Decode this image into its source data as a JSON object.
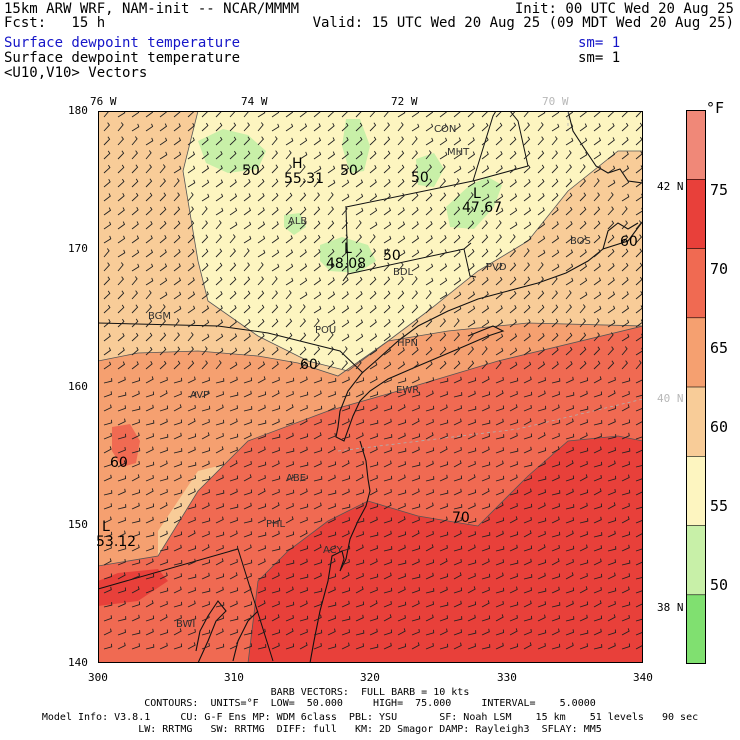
{
  "header": {
    "model": "15km ARW WRF, NAM-init -- NCAR/MMMM",
    "init": "Init: 00 UTC Wed 20 Aug 25",
    "fcst": "Fcst:   15 h",
    "valid": "Valid: 15 UTC Wed 20 Aug 25 (09 MDT Wed 20 Aug 25)",
    "field1": "Surface dewpoint temperature",
    "sm1": "sm= 1",
    "field2": "Surface dewpoint temperature",
    "sm2": "sm= 1",
    "field3": "<U10,V10> Vectors"
  },
  "axes": {
    "top_lon": [
      "76 W",
      "74 W",
      "72 W",
      "70 W"
    ],
    "right_lat": [
      "42 N",
      "40 N",
      "38 N"
    ],
    "left_y": [
      "180",
      "170",
      "160",
      "150",
      "140"
    ],
    "bottom_x": [
      "300",
      "310",
      "320",
      "330",
      "340"
    ]
  },
  "colorbar": {
    "unit": "°F",
    "labels": [
      "75",
      "70",
      "65",
      "60",
      "55",
      "50"
    ],
    "colors": [
      "#f08878",
      "#e8403a",
      "#f06a52",
      "#f5a070",
      "#f8cc98",
      "#fdf5c0",
      "#c8f0a8",
      "#80e070"
    ]
  },
  "contours": {
    "labels": [
      "50",
      "50",
      "50",
      "50",
      "60",
      "60",
      "60",
      "70"
    ],
    "extrema": [
      "H",
      "55.31",
      "L",
      "47.67",
      "L",
      "48.08",
      "L",
      "53.12"
    ]
  },
  "cities": [
    "CON",
    "MHT",
    "ALB",
    "BDL",
    "PVD",
    "BOS",
    "BGM",
    "POU",
    "HPN",
    "AVP",
    "ABE",
    "EWR",
    "PHL",
    "ACY",
    "BWI"
  ],
  "footer": {
    "line1": "BARB VECTORS:  FULL BARB = 10 kts",
    "line2": "CONTOURS:  UNITS=°F  LOW=  50.000     HIGH=  75.000     INTERVAL=    5.0000",
    "line3": "Model Info: V3.8.1     CU: G-F Ens MP: WDM 6class  PBL: YSU       SF: Noah LSM    15 km    51 levels   90 sec",
    "line4": "LW: RRTMG   SW: RRTMG  DIFF: full   KM: 2D Smagor DAMP: Rayleigh3  SFLAY: MM5"
  }
}
